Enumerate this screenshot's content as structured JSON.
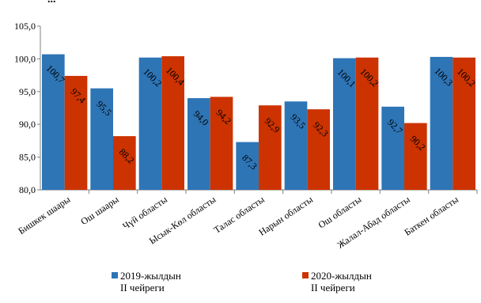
{
  "title_fragment": "...",
  "colors": {
    "series1": "#2e75b6",
    "series2": "#cc3300"
  },
  "chart_data": {
    "type": "bar",
    "categories": [
      "Бишкек шаары",
      "Ош шаары",
      "Чүй областы",
      "Ысык-Көл областы",
      "Талас областы",
      "Нарын областы",
      "Ош областы",
      "Жалал-Абад областы",
      "Баткен областы"
    ],
    "series": [
      {
        "name": "2019-жылдын II чейреги",
        "line1": "2019-жылдын",
        "line2": "II чейреги",
        "values": [
          100.7,
          95.5,
          100.2,
          94.0,
          87.3,
          93.5,
          100.1,
          92.7,
          100.3
        ],
        "labels": [
          "100,7",
          "95,5",
          "100,2",
          "94,0",
          "87,3",
          "93,5",
          "100,1",
          "92,7",
          "100,3"
        ]
      },
      {
        "name": "2020-жылдын II чейреги",
        "line1": "2020-жылдын",
        "line2": "II чейреги",
        "values": [
          97.4,
          88.2,
          100.4,
          94.2,
          92.9,
          92.3,
          100.2,
          90.2,
          100.2
        ],
        "labels": [
          "97,4",
          "88,2",
          "100,4",
          "94,2",
          "92,9",
          "92,3",
          "100,2",
          "90,2",
          "100,2"
        ]
      }
    ],
    "ylim": [
      80,
      105
    ],
    "yticks": [
      80,
      85,
      90,
      95,
      100,
      105
    ],
    "ytick_labels": [
      "80,0",
      "85,0",
      "90,0",
      "95,0",
      "100,0",
      "105,0"
    ],
    "legend_position": "bottom",
    "grid": false
  }
}
